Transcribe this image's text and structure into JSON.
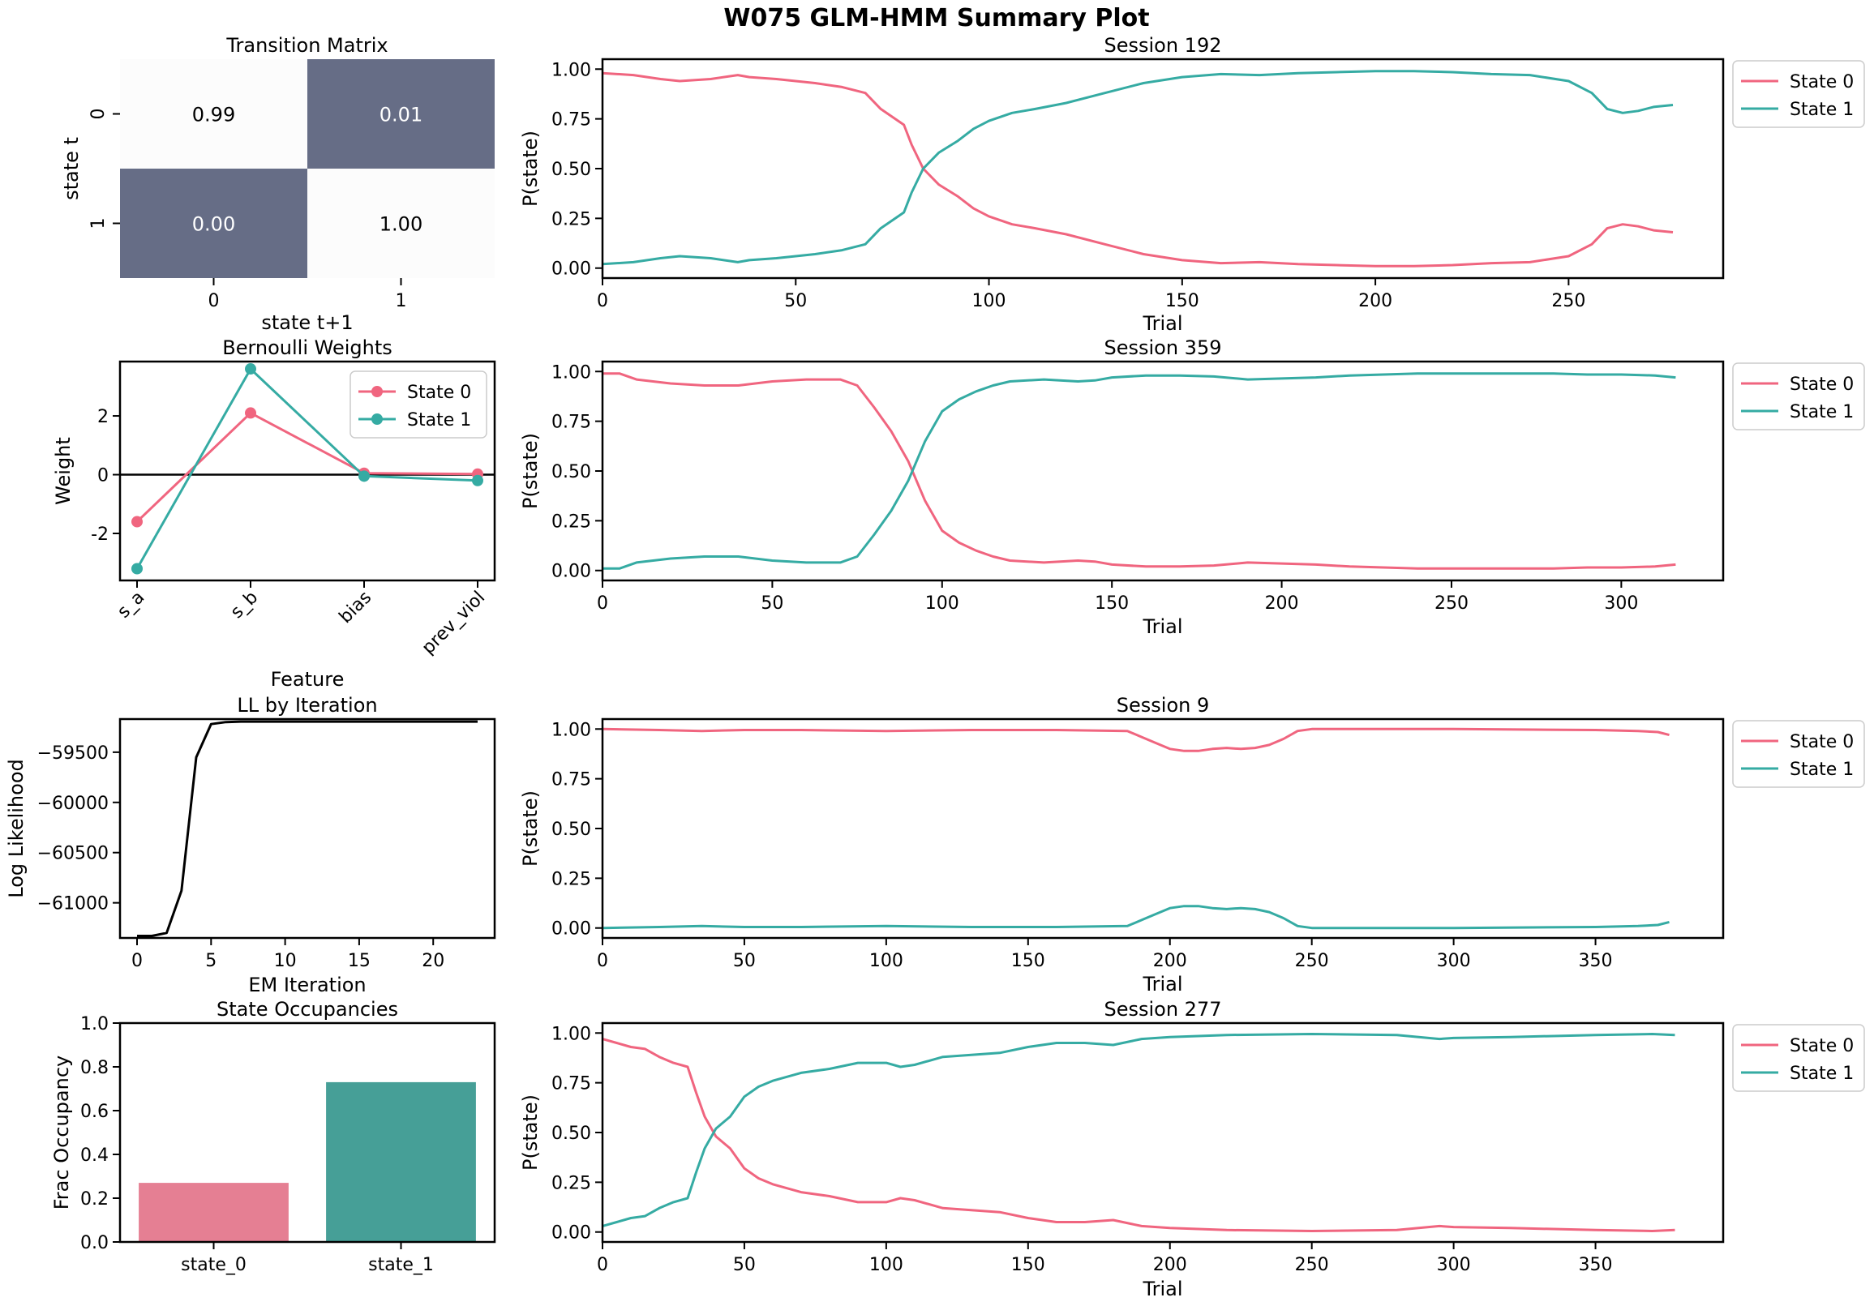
{
  "figure": {
    "title": "W075 GLM-HMM Summary Plot"
  },
  "colors": {
    "state_0": "#f0657f",
    "state_1": "#35aba3",
    "heat_high": "#666d86",
    "heat_low": "#fcfcfc",
    "bar_state_0": "#e57f93",
    "bar_state_1": "#469f97"
  },
  "chart_data": [
    {
      "id": "transition",
      "type": "heatmap",
      "title": "Transition Matrix",
      "xlabel": "state t+1",
      "ylabel": "state t",
      "x_ticks": [
        "0",
        "1"
      ],
      "y_ticks": [
        "0",
        "1"
      ],
      "values": [
        [
          0.99,
          0.01
        ],
        [
          0.0,
          1.0
        ]
      ],
      "cell_labels": [
        [
          "0.99",
          "0.01"
        ],
        [
          "0.00",
          "1.00"
        ]
      ]
    },
    {
      "id": "weights",
      "type": "line",
      "title": "Bernoulli Weights",
      "xlabel": "Feature",
      "ylabel": "Weight",
      "categories": [
        "s_a",
        "s_b",
        "bias",
        "prev_viol"
      ],
      "ylim": [
        -3.6,
        3.85
      ],
      "yticks": [
        -2,
        0,
        2
      ],
      "legend": "top-right",
      "series": [
        {
          "name": "State 0",
          "values": [
            -1.6,
            2.1,
            0.05,
            0.02
          ]
        },
        {
          "name": "State 1",
          "values": [
            -3.2,
            3.6,
            -0.05,
            -0.2
          ]
        }
      ]
    },
    {
      "id": "ll",
      "type": "line",
      "title": "LL by Iteration",
      "xlabel": "EM Iteration",
      "ylabel": "Log Likelihood",
      "xlim": [
        -1.15,
        24.15
      ],
      "ylim": [
        -61350,
        -59170
      ],
      "xticks": [
        0,
        5,
        10,
        15,
        20
      ],
      "yticks": [
        -61000,
        -60500,
        -60000,
        -59500
      ],
      "ytick_labels": [
        "−61000",
        "−60500",
        "−60000",
        "−59500"
      ],
      "x": [
        0,
        1,
        2,
        3,
        4,
        5,
        6,
        7,
        8,
        9,
        10,
        11,
        12,
        13,
        14,
        15,
        16,
        17,
        18,
        19,
        20,
        21,
        22,
        23
      ],
      "values": [
        -61330,
        -61330,
        -61300,
        -60880,
        -59550,
        -59220,
        -59200,
        -59195,
        -59195,
        -59195,
        -59195,
        -59195,
        -59195,
        -59195,
        -59195,
        -59195,
        -59195,
        -59195,
        -59195,
        -59195,
        -59195,
        -59195,
        -59195,
        -59195
      ]
    },
    {
      "id": "occupancy",
      "type": "bar",
      "title": "State Occupancies",
      "ylabel": "Frac Occupancy",
      "categories": [
        "state_0",
        "state_1"
      ],
      "values": [
        0.27,
        0.73
      ],
      "ylim": [
        0,
        1.0
      ],
      "yticks": [
        0.0,
        0.2,
        0.4,
        0.6,
        0.8,
        1.0
      ],
      "ytick_labels": [
        "0.0",
        "0.2",
        "0.4",
        "0.6",
        "0.8",
        "1.0"
      ]
    },
    {
      "id": "s192",
      "type": "line",
      "title": "Session 192",
      "xlabel": "Trial",
      "ylabel": "P(state)",
      "xlim": [
        0,
        290
      ],
      "ylim": [
        -0.05,
        1.05
      ],
      "xticks": [
        0,
        50,
        100,
        150,
        200,
        250
      ],
      "yticks": [
        0,
        0.25,
        0.5,
        0.75,
        1.0
      ],
      "ytick_labels": [
        "0.00",
        "0.25",
        "0.50",
        "0.75",
        "1.00"
      ],
      "legend": "outside-right",
      "series": [
        {
          "name": "State 0",
          "x": [
            0,
            8,
            15,
            20,
            28,
            35,
            38,
            45,
            55,
            62,
            68,
            72,
            78,
            80,
            83,
            87,
            92,
            96,
            100,
            106,
            112,
            120,
            130,
            140,
            150,
            160,
            170,
            180,
            190,
            200,
            210,
            220,
            230,
            240,
            250,
            256,
            260,
            264,
            268,
            272,
            277
          ],
          "values": [
            0.98,
            0.97,
            0.95,
            0.94,
            0.95,
            0.97,
            0.96,
            0.95,
            0.93,
            0.91,
            0.88,
            0.8,
            0.72,
            0.62,
            0.5,
            0.42,
            0.36,
            0.3,
            0.26,
            0.22,
            0.2,
            0.17,
            0.12,
            0.07,
            0.04,
            0.025,
            0.03,
            0.02,
            0.015,
            0.01,
            0.01,
            0.015,
            0.025,
            0.03,
            0.06,
            0.12,
            0.2,
            0.22,
            0.21,
            0.19,
            0.18
          ]
        },
        {
          "name": "State 1",
          "x": [
            0,
            8,
            15,
            20,
            28,
            35,
            38,
            45,
            55,
            62,
            68,
            72,
            78,
            80,
            83,
            87,
            92,
            96,
            100,
            106,
            112,
            120,
            130,
            140,
            150,
            160,
            170,
            180,
            190,
            200,
            210,
            220,
            230,
            240,
            250,
            256,
            260,
            264,
            268,
            272,
            277
          ],
          "values": [
            0.02,
            0.03,
            0.05,
            0.06,
            0.05,
            0.03,
            0.04,
            0.05,
            0.07,
            0.09,
            0.12,
            0.2,
            0.28,
            0.38,
            0.5,
            0.58,
            0.64,
            0.7,
            0.74,
            0.78,
            0.8,
            0.83,
            0.88,
            0.93,
            0.96,
            0.975,
            0.97,
            0.98,
            0.985,
            0.99,
            0.99,
            0.985,
            0.975,
            0.97,
            0.94,
            0.88,
            0.8,
            0.78,
            0.79,
            0.81,
            0.82
          ]
        }
      ]
    },
    {
      "id": "s359",
      "type": "line",
      "title": "Session 359",
      "xlabel": "Trial",
      "ylabel": "P(state)",
      "xlim": [
        0,
        330
      ],
      "ylim": [
        -0.05,
        1.05
      ],
      "xticks": [
        0,
        50,
        100,
        150,
        200,
        250,
        300
      ],
      "yticks": [
        0,
        0.25,
        0.5,
        0.75,
        1.0
      ],
      "ytick_labels": [
        "0.00",
        "0.25",
        "0.50",
        "0.75",
        "1.00"
      ],
      "legend": "outside-right",
      "series": [
        {
          "name": "State 0",
          "x": [
            0,
            5,
            10,
            20,
            30,
            40,
            50,
            60,
            65,
            70,
            75,
            80,
            85,
            90,
            95,
            100,
            105,
            110,
            115,
            120,
            130,
            140,
            145,
            150,
            160,
            170,
            180,
            190,
            200,
            210,
            220,
            230,
            240,
            250,
            260,
            270,
            280,
            290,
            300,
            310,
            316
          ],
          "values": [
            0.99,
            0.99,
            0.96,
            0.94,
            0.93,
            0.93,
            0.95,
            0.96,
            0.96,
            0.96,
            0.93,
            0.82,
            0.7,
            0.55,
            0.35,
            0.2,
            0.14,
            0.1,
            0.07,
            0.05,
            0.04,
            0.05,
            0.045,
            0.03,
            0.02,
            0.02,
            0.025,
            0.04,
            0.035,
            0.03,
            0.02,
            0.015,
            0.01,
            0.01,
            0.01,
            0.01,
            0.01,
            0.015,
            0.015,
            0.02,
            0.03
          ]
        },
        {
          "name": "State 1",
          "x": [
            0,
            5,
            10,
            20,
            30,
            40,
            50,
            60,
            65,
            70,
            75,
            80,
            85,
            90,
            95,
            100,
            105,
            110,
            115,
            120,
            130,
            140,
            145,
            150,
            160,
            170,
            180,
            190,
            200,
            210,
            220,
            230,
            240,
            250,
            260,
            270,
            280,
            290,
            300,
            310,
            316
          ],
          "values": [
            0.01,
            0.01,
            0.04,
            0.06,
            0.07,
            0.07,
            0.05,
            0.04,
            0.04,
            0.04,
            0.07,
            0.18,
            0.3,
            0.45,
            0.65,
            0.8,
            0.86,
            0.9,
            0.93,
            0.95,
            0.96,
            0.95,
            0.955,
            0.97,
            0.98,
            0.98,
            0.975,
            0.96,
            0.965,
            0.97,
            0.98,
            0.985,
            0.99,
            0.99,
            0.99,
            0.99,
            0.99,
            0.985,
            0.985,
            0.98,
            0.97
          ]
        }
      ]
    },
    {
      "id": "s9",
      "type": "line",
      "title": "Session 9",
      "xlabel": "Trial",
      "ylabel": "P(state)",
      "xlim": [
        0,
        395
      ],
      "ylim": [
        -0.05,
        1.05
      ],
      "xticks": [
        0,
        50,
        100,
        150,
        200,
        250,
        300,
        350
      ],
      "yticks": [
        0,
        0.25,
        0.5,
        0.75,
        1.0
      ],
      "ytick_labels": [
        "0.00",
        "0.25",
        "0.50",
        "0.75",
        "1.00"
      ],
      "legend": "outside-right",
      "series": [
        {
          "name": "State 0",
          "x": [
            0,
            20,
            35,
            50,
            70,
            100,
            130,
            160,
            185,
            190,
            195,
            200,
            205,
            210,
            215,
            220,
            225,
            230,
            235,
            240,
            245,
            250,
            260,
            300,
            350,
            365,
            372,
            376
          ],
          "values": [
            1.0,
            0.995,
            0.99,
            0.995,
            0.995,
            0.99,
            0.995,
            0.995,
            0.99,
            0.96,
            0.93,
            0.9,
            0.89,
            0.89,
            0.9,
            0.905,
            0.9,
            0.905,
            0.92,
            0.95,
            0.99,
            1.0,
            1.0,
            1.0,
            0.995,
            0.99,
            0.985,
            0.97
          ]
        },
        {
          "name": "State 1",
          "x": [
            0,
            20,
            35,
            50,
            70,
            100,
            130,
            160,
            185,
            190,
            195,
            200,
            205,
            210,
            215,
            220,
            225,
            230,
            235,
            240,
            245,
            250,
            260,
            300,
            350,
            365,
            372,
            376
          ],
          "values": [
            0.0,
            0.005,
            0.01,
            0.005,
            0.005,
            0.01,
            0.005,
            0.005,
            0.01,
            0.04,
            0.07,
            0.1,
            0.11,
            0.11,
            0.1,
            0.095,
            0.1,
            0.095,
            0.08,
            0.05,
            0.01,
            0.0,
            0.0,
            0.0,
            0.005,
            0.01,
            0.015,
            0.03
          ]
        }
      ]
    },
    {
      "id": "s277",
      "type": "line",
      "title": "Session 277",
      "xlabel": "Trial",
      "ylabel": "P(state)",
      "xlim": [
        0,
        395
      ],
      "ylim": [
        -0.05,
        1.05
      ],
      "xticks": [
        0,
        50,
        100,
        150,
        200,
        250,
        300,
        350
      ],
      "yticks": [
        0,
        0.25,
        0.5,
        0.75,
        1.0
      ],
      "ytick_labels": [
        "0.00",
        "0.25",
        "0.50",
        "0.75",
        "1.00"
      ],
      "legend": "outside-right",
      "series": [
        {
          "name": "State 0",
          "x": [
            0,
            5,
            10,
            15,
            20,
            25,
            30,
            33,
            36,
            40,
            45,
            50,
            55,
            60,
            70,
            80,
            90,
            100,
            105,
            110,
            120,
            130,
            140,
            150,
            160,
            170,
            180,
            190,
            200,
            220,
            250,
            280,
            295,
            300,
            320,
            350,
            370,
            378
          ],
          "values": [
            0.97,
            0.95,
            0.93,
            0.92,
            0.88,
            0.85,
            0.83,
            0.7,
            0.58,
            0.48,
            0.42,
            0.32,
            0.27,
            0.24,
            0.2,
            0.18,
            0.15,
            0.15,
            0.17,
            0.16,
            0.12,
            0.11,
            0.1,
            0.07,
            0.05,
            0.05,
            0.06,
            0.03,
            0.02,
            0.01,
            0.005,
            0.01,
            0.03,
            0.025,
            0.02,
            0.01,
            0.005,
            0.01
          ]
        },
        {
          "name": "State 1",
          "x": [
            0,
            5,
            10,
            15,
            20,
            25,
            30,
            33,
            36,
            40,
            45,
            50,
            55,
            60,
            70,
            80,
            90,
            100,
            105,
            110,
            120,
            130,
            140,
            150,
            160,
            170,
            180,
            190,
            200,
            220,
            250,
            280,
            295,
            300,
            320,
            350,
            370,
            378
          ],
          "values": [
            0.03,
            0.05,
            0.07,
            0.08,
            0.12,
            0.15,
            0.17,
            0.3,
            0.42,
            0.52,
            0.58,
            0.68,
            0.73,
            0.76,
            0.8,
            0.82,
            0.85,
            0.85,
            0.83,
            0.84,
            0.88,
            0.89,
            0.9,
            0.93,
            0.95,
            0.95,
            0.94,
            0.97,
            0.98,
            0.99,
            0.995,
            0.99,
            0.97,
            0.975,
            0.98,
            0.99,
            0.995,
            0.99
          ]
        }
      ]
    }
  ]
}
